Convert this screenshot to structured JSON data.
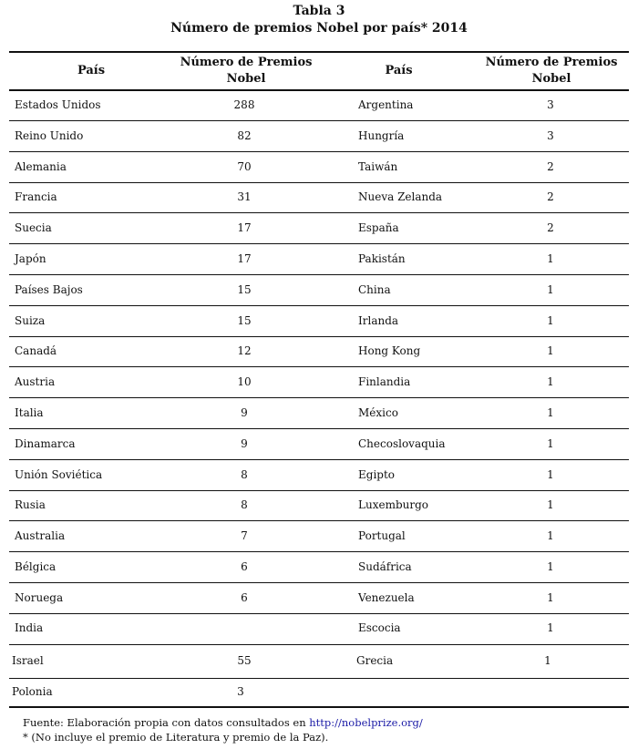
{
  "title": "Tabla 3",
  "subtitle": "Número de premios Nobel por país* 2014",
  "headers": {
    "country": "País",
    "count_line1": "Número de Premios",
    "count_line2": "Nobel"
  },
  "rows": [
    [
      "Estados Unidos",
      "288",
      "Argentina",
      "3"
    ],
    [
      "Reino Unido",
      "82",
      "Hungría",
      "3"
    ],
    [
      "Alemania",
      "70",
      "Taiwán",
      "2"
    ],
    [
      "Francia",
      "31",
      "Nueva Zelanda",
      "2"
    ],
    [
      "Suecia",
      "17",
      "España",
      "2"
    ],
    [
      "Japón",
      "17",
      "Pakistán",
      "1"
    ],
    [
      "Países Bajos",
      "15",
      "China",
      "1"
    ],
    [
      "Suiza",
      "15",
      "Irlanda",
      "1"
    ],
    [
      "Canadá",
      "12",
      "Hong Kong",
      "1"
    ],
    [
      "Austria",
      "10",
      "Finlandia",
      "1"
    ],
    [
      "Italia",
      "9",
      "México",
      "1"
    ],
    [
      "Dinamarca",
      "9",
      "Checoslovaquia",
      "1"
    ],
    [
      "Unión Soviética",
      "8",
      "Egipto",
      "1"
    ],
    [
      "Rusia",
      "8",
      "Luxemburgo",
      "1"
    ],
    [
      "Australia",
      "7",
      "Portugal",
      "1"
    ],
    [
      "Bélgica",
      "6",
      "Sudáfrica",
      "1"
    ],
    [
      "Noruega",
      "6",
      "Venezuela",
      "1"
    ],
    [
      "India",
      "",
      "Escocia",
      "1"
    ],
    [
      "Israel",
      "55",
      "Grecia",
      "1"
    ],
    [
      "Polonia",
      "3",
      "",
      ""
    ]
  ],
  "footnote": {
    "source_text": "Fuente: Elaboración propia con datos consultados en ",
    "source_link": "http://nobelprize.org/",
    "note": "* (No incluye el premio de Literatura y premio de la Paz)."
  }
}
